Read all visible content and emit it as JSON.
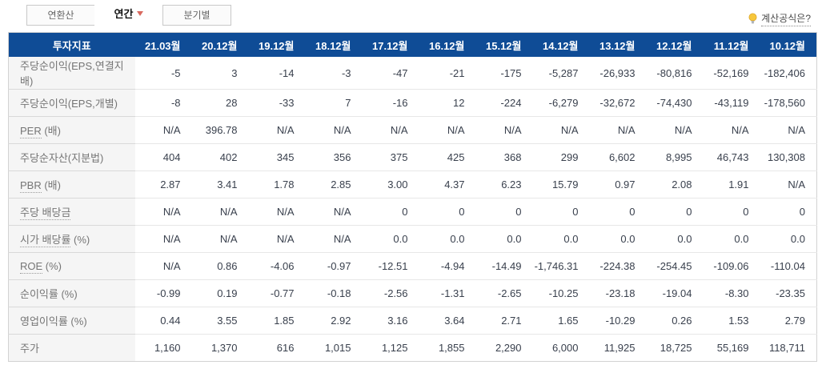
{
  "tabs": [
    {
      "key": "annualized",
      "label": "연환산",
      "active": false,
      "has_caret": false
    },
    {
      "key": "annual",
      "label": "연간",
      "active": true,
      "has_caret": true
    },
    {
      "key": "quarterly",
      "label": "분기별",
      "active": false,
      "has_caret": false
    }
  ],
  "formula_link": {
    "label": "계산공식은?",
    "icon": "lightbulb-icon"
  },
  "colors": {
    "header_bg": "#0f4c96",
    "header_text": "#ffffff",
    "label_col_bg": "#f5f5f5",
    "caret_accent": "#d9695f",
    "bulb_yellow": "#f7c73c"
  },
  "chart_data": {
    "type": "table",
    "title": "투자지표",
    "columns": [
      "투자지표",
      "21.03월",
      "20.12월",
      "19.12월",
      "18.12월",
      "17.12월",
      "16.12월",
      "15.12월",
      "14.12월",
      "13.12월",
      "12.12월",
      "11.12월",
      "10.12월"
    ],
    "rows": [
      {
        "term": "주당순이익(EPS,연결지배)",
        "suffix": "",
        "underline": false,
        "values": [
          "-5",
          "3",
          "-14",
          "-3",
          "-47",
          "-21",
          "-175",
          "-5,287",
          "-26,933",
          "-80,816",
          "-52,169",
          "-182,406"
        ]
      },
      {
        "term": "주당순이익(EPS,개별)",
        "suffix": "",
        "underline": false,
        "values": [
          "-8",
          "28",
          "-33",
          "7",
          "-16",
          "12",
          "-224",
          "-6,279",
          "-32,672",
          "-74,430",
          "-43,119",
          "-178,560"
        ]
      },
      {
        "term": "PER",
        "suffix": " (배)",
        "underline": true,
        "values": [
          "N/A",
          "396.78",
          "N/A",
          "N/A",
          "N/A",
          "N/A",
          "N/A",
          "N/A",
          "N/A",
          "N/A",
          "N/A",
          "N/A"
        ]
      },
      {
        "term": "주당순자산(지분법)",
        "suffix": "",
        "underline": false,
        "values": [
          "404",
          "402",
          "345",
          "356",
          "375",
          "425",
          "368",
          "299",
          "6,602",
          "8,995",
          "46,743",
          "130,308"
        ]
      },
      {
        "term": "PBR",
        "suffix": " (배)",
        "underline": true,
        "values": [
          "2.87",
          "3.41",
          "1.78",
          "2.85",
          "3.00",
          "4.37",
          "6.23",
          "15.79",
          "0.97",
          "2.08",
          "1.91",
          "N/A"
        ]
      },
      {
        "term": "주당 배당금",
        "suffix": "",
        "underline": true,
        "values": [
          "N/A",
          "N/A",
          "N/A",
          "N/A",
          "0",
          "0",
          "0",
          "0",
          "0",
          "0",
          "0",
          "0"
        ]
      },
      {
        "term": "시가 배당률",
        "suffix": " (%)",
        "underline": true,
        "values": [
          "N/A",
          "N/A",
          "N/A",
          "N/A",
          "0.0",
          "0.0",
          "0.0",
          "0.0",
          "0.0",
          "0.0",
          "0.0",
          "0.0"
        ]
      },
      {
        "term": "ROE",
        "suffix": " (%)",
        "underline": true,
        "values": [
          "N/A",
          "0.86",
          "-4.06",
          "-0.97",
          "-12.51",
          "-4.94",
          "-14.49",
          "-1,746.31",
          "-224.38",
          "-254.45",
          "-109.06",
          "-110.04"
        ]
      },
      {
        "term": "순이익률",
        "suffix": " (%)",
        "underline": false,
        "values": [
          "-0.99",
          "0.19",
          "-0.77",
          "-0.18",
          "-2.56",
          "-1.31",
          "-2.65",
          "-10.25",
          "-23.18",
          "-19.04",
          "-8.30",
          "-23.35"
        ]
      },
      {
        "term": "영업이익률",
        "suffix": " (%)",
        "underline": false,
        "values": [
          "0.44",
          "3.55",
          "1.85",
          "2.92",
          "3.16",
          "3.64",
          "2.71",
          "1.65",
          "-10.29",
          "0.26",
          "1.53",
          "2.79"
        ]
      },
      {
        "term": "주가",
        "suffix": "",
        "underline": false,
        "values": [
          "1,160",
          "1,370",
          "616",
          "1,015",
          "1,125",
          "1,855",
          "2,290",
          "6,000",
          "11,925",
          "18,725",
          "55,169",
          "118,711"
        ]
      }
    ]
  }
}
